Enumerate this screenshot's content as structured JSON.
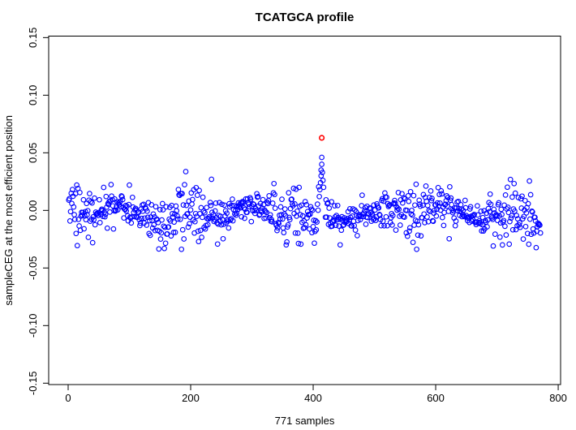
{
  "chart_data": {
    "type": "scatter",
    "title": "TCATGCA profile",
    "xlabel": "771 samples",
    "ylabel": "sampleCEG at the most efficient position",
    "xlim": [
      -31.8,
      803.9
    ],
    "ylim": [
      -0.1512,
      0.1513
    ],
    "x_ticks": [
      0,
      200,
      400,
      600,
      800
    ],
    "x_tick_labels": [
      "0",
      "200",
      "400",
      "600",
      "800"
    ],
    "y_ticks": [
      -0.15,
      -0.1,
      -0.05,
      0.0,
      0.05,
      0.1,
      0.15
    ],
    "y_tick_labels": [
      "-0.15",
      "-0.10",
      "-0.05",
      "0.00",
      "0.05",
      "0.10",
      "0.15"
    ],
    "grid": false,
    "legend": null,
    "n_points": 771,
    "x_values": "sample index 1..771",
    "band": {
      "mean": -0.002,
      "sd": 0.012,
      "observed_y_range": [
        -0.034,
        0.047
      ],
      "description": "noisy horizontal band of open circles centred near 0"
    },
    "spike_points": [
      {
        "x": 410,
        "y": 0.012
      },
      {
        "x": 411,
        "y": 0.018
      },
      {
        "x": 412,
        "y": 0.024
      },
      {
        "x": 413,
        "y": 0.03
      },
      {
        "x": 413,
        "y": 0.035
      },
      {
        "x": 414,
        "y": 0.04
      },
      {
        "x": 414,
        "y": 0.046
      },
      {
        "x": 415,
        "y": 0.033
      },
      {
        "x": 416,
        "y": 0.026
      },
      {
        "x": 417,
        "y": 0.02
      }
    ],
    "outlier": {
      "x": 414,
      "y": 0.063
    },
    "point_style": {
      "shape": "open-circle",
      "radius_px": 2.8,
      "stroke_width": 1.1
    },
    "colors": {
      "points": "#0000ff",
      "outlier": "#ff0000",
      "axis": "#000000",
      "background": "#ffffff"
    },
    "seed": 123456
  }
}
